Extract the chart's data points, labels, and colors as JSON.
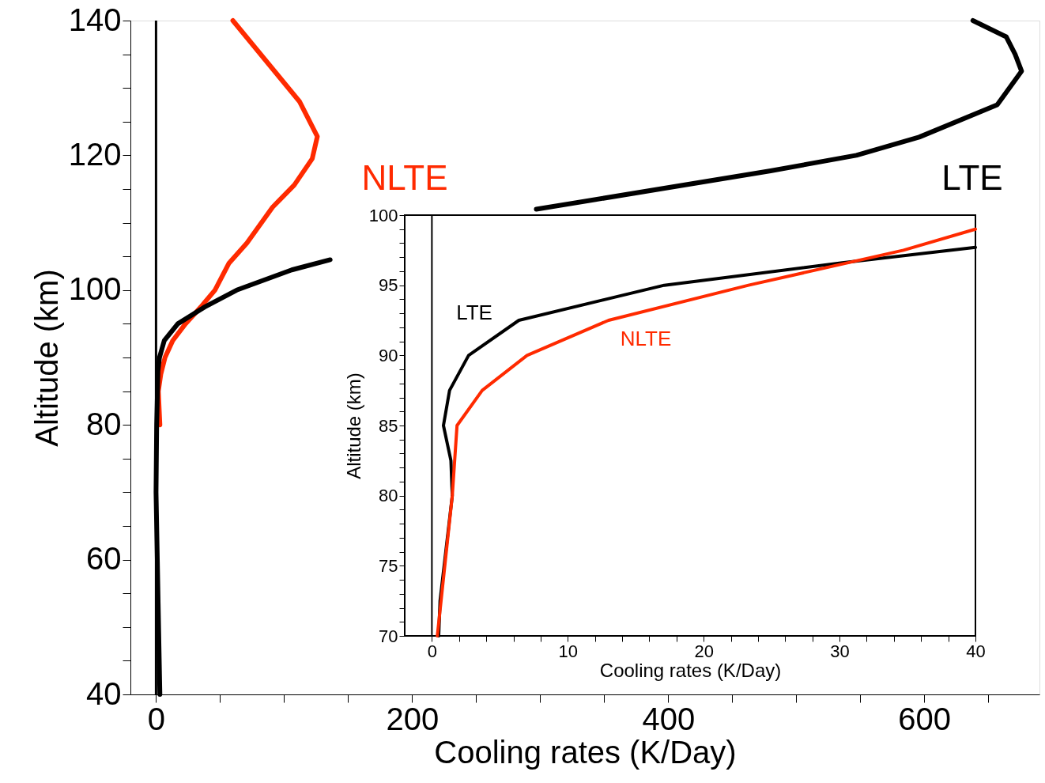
{
  "chart_data": [
    {
      "type": "line",
      "xlabel": "Cooling rates (K/Day)",
      "ylabel": "Altitude (km)",
      "xlim": [
        -20,
        690
      ],
      "ylim": [
        40,
        140
      ],
      "xticks": [
        0,
        {
          "value": 50,
          "label": null
        },
        {
          "value": 100,
          "label": null
        },
        {
          "value": 150,
          "label": null
        },
        200,
        {
          "value": 250,
          "label": null
        },
        {
          "value": 300,
          "label": null
        },
        {
          "value": 350,
          "label": null
        },
        400,
        {
          "value": 450,
          "label": null
        },
        {
          "value": 500,
          "label": null
        },
        {
          "value": 550,
          "label": null
        },
        600,
        {
          "value": 650,
          "label": null
        }
      ],
      "yticks": [
        40,
        {
          "value": 45,
          "label": null
        },
        {
          "value": 50,
          "label": null
        },
        {
          "value": 55,
          "label": null
        },
        60,
        {
          "value": 65,
          "label": null
        },
        {
          "value": 70,
          "label": null
        },
        {
          "value": 75,
          "label": null
        },
        80,
        {
          "value": 85,
          "label": null
        },
        {
          "value": 90,
          "label": null
        },
        {
          "value": 95,
          "label": null
        },
        100,
        {
          "value": 105,
          "label": null
        },
        {
          "value": 110,
          "label": null
        },
        {
          "value": 115,
          "label": null
        },
        120,
        {
          "value": 125,
          "label": null
        },
        {
          "value": 130,
          "label": null
        },
        {
          "value": 135,
          "label": null
        },
        140
      ],
      "ref_lines": [
        {
          "axis": "x",
          "value": 0,
          "color": "#000000"
        }
      ],
      "grid": false,
      "marker": "none",
      "line_style": "solid",
      "series": [
        {
          "name": "NLTE",
          "color": "#ff2a00",
          "x": [
            3,
            1.8,
            3.7,
            7,
            13,
            23,
            35,
            46,
            57,
            71,
            91,
            108,
            122,
            126,
            112,
            60
          ],
          "values": [
            80,
            85,
            87.5,
            90,
            92.5,
            95,
            97.5,
            100,
            104,
            107,
            112.3,
            115.6,
            119.5,
            122.8,
            128,
            140
          ]
        },
        {
          "name": "LTE",
          "color": "#000000",
          "x": [
            3,
            1,
            0,
            0.5,
            1.5,
            2.7,
            6.4,
            17,
            38,
            63,
            106,
            136,
            null,
            297,
            480,
            547,
            596,
            657,
            676,
            671,
            664,
            638
          ],
          "values": [
            40,
            60,
            70,
            80,
            88,
            90,
            92.5,
            95,
            97.5,
            100,
            103,
            104.5,
            null,
            112,
            117.7,
            120,
            122.7,
            127.5,
            132.5,
            135,
            137.6,
            140
          ]
        }
      ]
    },
    {
      "type": "line",
      "xlabel": "Cooling rates (K/Day)",
      "ylabel": "Altitude (km)",
      "xlim": [
        -2,
        40
      ],
      "ylim": [
        70,
        100
      ],
      "xticks": [
        0,
        {
          "value": 2,
          "label": null
        },
        {
          "value": 4,
          "label": null
        },
        {
          "value": 6,
          "label": null
        },
        {
          "value": 8,
          "label": null
        },
        10,
        {
          "value": 12,
          "label": null
        },
        {
          "value": 14,
          "label": null
        },
        {
          "value": 16,
          "label": null
        },
        {
          "value": 18,
          "label": null
        },
        20,
        {
          "value": 22,
          "label": null
        },
        {
          "value": 24,
          "label": null
        },
        {
          "value": 26,
          "label": null
        },
        {
          "value": 28,
          "label": null
        },
        30,
        {
          "value": 32,
          "label": null
        },
        {
          "value": 34,
          "label": null
        },
        {
          "value": 36,
          "label": null
        },
        {
          "value": 38,
          "label": null
        },
        40
      ],
      "yticks": [
        70,
        {
          "value": 71,
          "label": null
        },
        {
          "value": 72,
          "label": null
        },
        {
          "value": 73,
          "label": null
        },
        {
          "value": 74,
          "label": null
        },
        75,
        {
          "value": 76,
          "label": null
        },
        {
          "value": 77,
          "label": null
        },
        {
          "value": 78,
          "label": null
        },
        {
          "value": 79,
          "label": null
        },
        80,
        {
          "value": 81,
          "label": null
        },
        {
          "value": 82,
          "label": null
        },
        {
          "value": 83,
          "label": null
        },
        {
          "value": 84,
          "label": null
        },
        85,
        {
          "value": 86,
          "label": null
        },
        {
          "value": 87,
          "label": null
        },
        {
          "value": 88,
          "label": null
        },
        {
          "value": 89,
          "label": null
        },
        90,
        {
          "value": 91,
          "label": null
        },
        {
          "value": 92,
          "label": null
        },
        {
          "value": 93,
          "label": null
        },
        {
          "value": 94,
          "label": null
        },
        95,
        {
          "value": 96,
          "label": null
        },
        {
          "value": 97,
          "label": null
        },
        {
          "value": 98,
          "label": null
        },
        {
          "value": 99,
          "label": null
        },
        100
      ],
      "ref_lines": [
        {
          "axis": "x",
          "value": 0,
          "color": "#000000"
        }
      ],
      "grid": false,
      "marker": "none",
      "line_style": "solid",
      "series": [
        {
          "name": "LTE",
          "color": "#000000",
          "x": [
            0.5,
            0.6,
            1.5,
            1.4,
            0.85,
            1.3,
            2.7,
            6.4,
            17.1,
            30.2,
            40
          ],
          "values": [
            70,
            72.5,
            80,
            82.5,
            85,
            87.5,
            90,
            92.5,
            95,
            96.6,
            97.7
          ]
        },
        {
          "name": "NLTE",
          "color": "#ff2a00",
          "x": [
            0.4,
            1.5,
            1.85,
            3.7,
            7,
            13,
            23.3,
            34.7,
            40
          ],
          "values": [
            70,
            80,
            85,
            87.5,
            90,
            92.5,
            95,
            97.5,
            99
          ]
        }
      ]
    }
  ]
}
